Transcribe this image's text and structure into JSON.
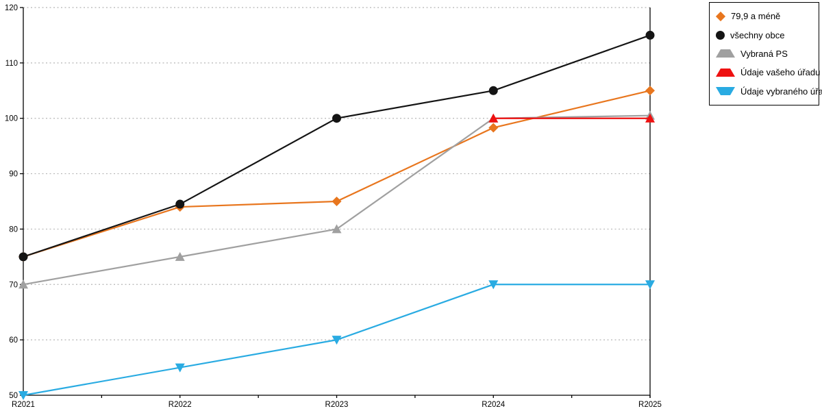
{
  "chart_data": {
    "type": "line",
    "title": "",
    "xlabel": "",
    "ylabel": "",
    "categories": [
      "R2021",
      "R2022",
      "R2023",
      "R2024",
      "R2025"
    ],
    "ylim": [
      50,
      120
    ],
    "ytick_step": 10,
    "yticks": [
      50,
      60,
      70,
      80,
      90,
      100,
      110,
      120
    ],
    "grid": "horizontal-dotted",
    "legend_position": "top-right",
    "axis_color": "#000000",
    "gridline_color": "#B5B5B5",
    "series": [
      {
        "name": "79,9 a méně",
        "marker": "diamond",
        "color": "#E8761E",
        "values": [
          75,
          84,
          85,
          98.3,
          105
        ]
      },
      {
        "name": "všechny obce",
        "marker": "circle",
        "color": "#141414",
        "values": [
          75,
          84.5,
          100,
          105,
          115
        ]
      },
      {
        "name": "Vybraná PS",
        "marker": "triangle-up",
        "color": "#A0A0A0",
        "values": [
          70,
          75,
          80,
          100,
          100.5
        ]
      },
      {
        "name": "Údaje vašeho úřadu",
        "marker": "triangle-up",
        "color": "#EE1111",
        "values": [
          null,
          null,
          null,
          100,
          100
        ]
      },
      {
        "name": "Údaje vybraného úřadu",
        "marker": "triangle-down",
        "color": "#29ABE2",
        "values": [
          50,
          55,
          60,
          70,
          70
        ]
      }
    ]
  }
}
